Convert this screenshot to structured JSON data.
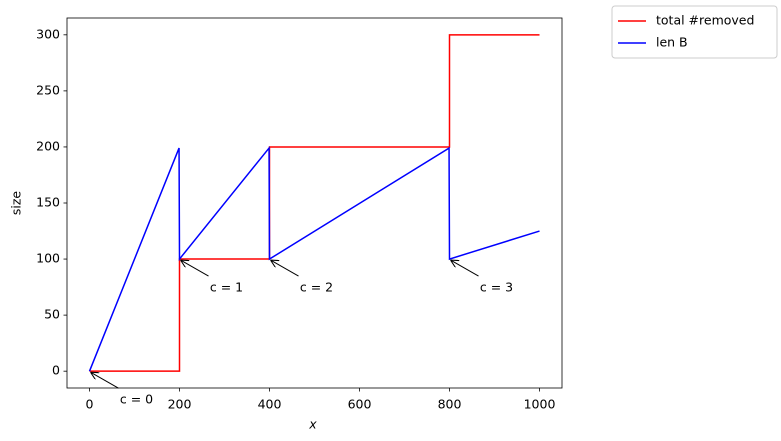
{
  "chart_data": {
    "type": "line",
    "xlabel": "x",
    "ylabel": "size",
    "series": [
      {
        "name": "total #removed",
        "color": "#ff0000",
        "x": [
          0,
          200,
          200,
          400,
          400,
          800,
          800,
          1000
        ],
        "values": [
          0,
          0,
          100,
          100,
          200,
          200,
          300,
          300
        ]
      },
      {
        "name": "len B",
        "color": "#0000ff",
        "x": [
          0,
          199,
          200,
          399,
          400,
          799,
          800,
          1000
        ],
        "values": [
          0,
          199,
          100,
          199,
          100,
          199,
          100,
          125
        ]
      }
    ],
    "annotations": [
      {
        "text": "c = 0",
        "xy": [
          0,
          0
        ]
      },
      {
        "text": "c = 1",
        "xy": [
          200,
          100
        ]
      },
      {
        "text": "c = 2",
        "xy": [
          400,
          100
        ]
      },
      {
        "text": "c = 3",
        "xy": [
          800,
          100
        ]
      }
    ],
    "xlim": [
      -50,
      1050
    ],
    "ylim": [
      -15,
      315
    ],
    "xticks": [
      0,
      200,
      400,
      600,
      800,
      1000
    ],
    "yticks": [
      0,
      50,
      100,
      150,
      200,
      250,
      300
    ],
    "grid": false,
    "legend": "outside upper right"
  }
}
